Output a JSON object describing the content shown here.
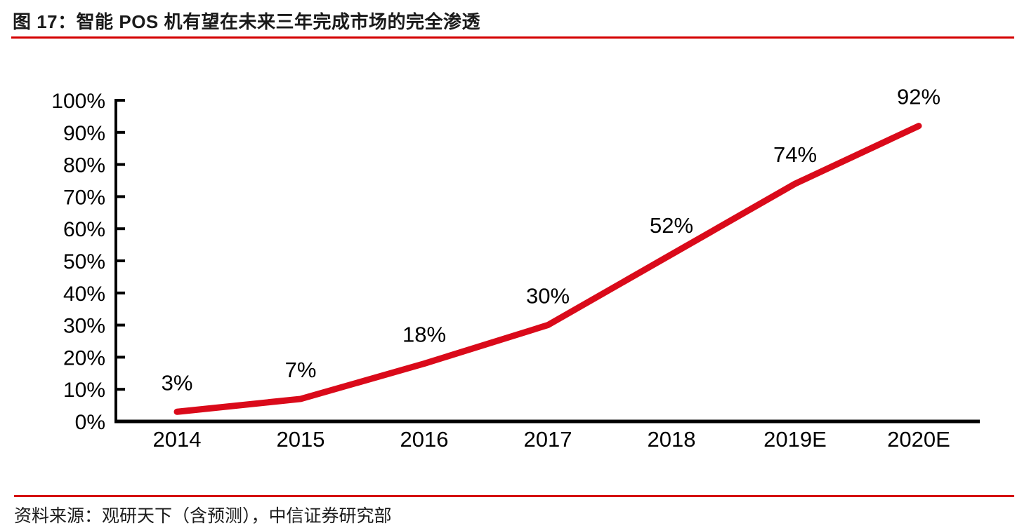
{
  "header": {
    "title": "图 17：智能 POS 机有望在未来三年完成市场的完全渗透"
  },
  "footer": {
    "source": "资料来源：观研天下（含预测），中信证券研究部"
  },
  "colors": {
    "line": "#da0a1a",
    "rule": "#d40000",
    "axis": "#000000"
  },
  "chart_data": {
    "type": "line",
    "title": "图 17：智能 POS 机有望在未来三年完成市场的完全渗透",
    "categories": [
      "2014",
      "2015",
      "2016",
      "2017",
      "2018",
      "2019E",
      "2020E"
    ],
    "values": [
      3,
      7,
      18,
      30,
      52,
      74,
      92
    ],
    "data_labels": [
      "3%",
      "7%",
      "18%",
      "30%",
      "52%",
      "74%",
      "92%"
    ],
    "xlabel": "",
    "ylabel": "",
    "ylim": [
      0,
      100
    ],
    "ytick_step": 10,
    "ytick_labels": [
      "0%",
      "10%",
      "20%",
      "30%",
      "40%",
      "50%",
      "60%",
      "70%",
      "80%",
      "90%",
      "100%"
    ],
    "grid": false,
    "legend": false
  }
}
